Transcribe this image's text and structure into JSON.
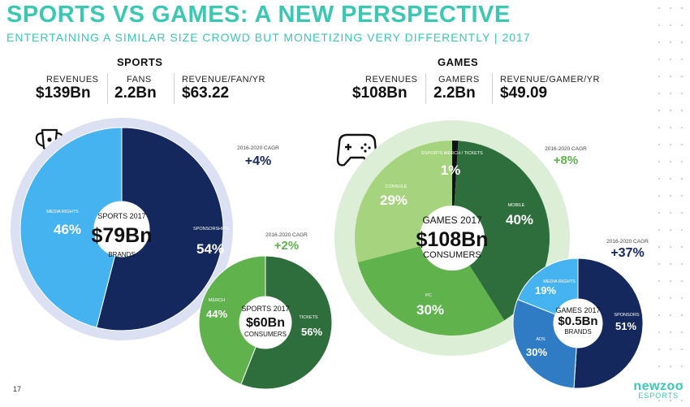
{
  "title": "SPORTS VS GAMES: A NEW PERSPECTIVE",
  "subtitle": "ENTERTAINING A SIMILAR SIZE CROWD BUT MONETIZING VERY DIFFERENTLY | 2017",
  "page_number": "17",
  "logo": {
    "name": "newzoo",
    "sub": "ESPORTS"
  },
  "sports": {
    "heading": "SPORTS",
    "stats": [
      {
        "label": "REVENUES",
        "value": "$139Bn"
      },
      {
        "label": "FANS",
        "value": "2.2Bn"
      },
      {
        "label": "REVENUE/FAN/YR",
        "value": "$63.22"
      }
    ]
  },
  "games": {
    "heading": "GAMES",
    "stats": [
      {
        "label": "REVENUES",
        "value": "$108Bn"
      },
      {
        "label": "GAMERS",
        "value": "2.2Bn"
      },
      {
        "label": "REVENUE/GAMER/YR",
        "value": "$49.09"
      }
    ]
  },
  "colors": {
    "navy": "#14285e",
    "lightblue": "#45b3f0",
    "midblue": "#2f7cc4",
    "palelavender": "#dbe1f3",
    "palegreen": "#dcefd6",
    "darkgreen": "#2e6e3c",
    "green": "#5fb24c",
    "lightgreen": "#a6d37e",
    "black": "#111111",
    "teal": "#3cc7b2"
  },
  "chart_data": [
    {
      "type": "pie",
      "center_title": "SPORTS 2017",
      "center_value": "$79Bn",
      "center_sub": "BRANDS",
      "cagr_label": "2016-2020 CAGR",
      "cagr_value": "+4%",
      "slices": [
        {
          "name": "SPONSORSHIPS",
          "value": 54,
          "label": "54%",
          "color": "#14285e"
        },
        {
          "name": "MEDIA RIGHTS",
          "value": 46,
          "label": "46%",
          "color": "#45b3f0"
        }
      ]
    },
    {
      "type": "pie",
      "center_title": "SPORTS 2017",
      "center_value": "$60Bn",
      "center_sub": "CONSUMERS",
      "cagr_label": "2016-2020 CAGR",
      "cagr_value": "+2%",
      "slices": [
        {
          "name": "TICKETS",
          "value": 56,
          "label": "56%",
          "color": "#2e6e3c"
        },
        {
          "name": "MERCH",
          "value": 44,
          "label": "44%",
          "color": "#5fb24c"
        }
      ]
    },
    {
      "type": "pie",
      "center_title": "GAMES 2017",
      "center_value": "$108Bn",
      "center_sub": "CONSUMERS",
      "cagr_label": "2016-2020 CAGR",
      "cagr_value": "+8%",
      "slices": [
        {
          "name": "ESPORTS MERCH / TICKETS",
          "value": 1,
          "label": "1%",
          "color": "#111111"
        },
        {
          "name": "MOBILE",
          "value": 40,
          "label": "40%",
          "color": "#2e6e3c"
        },
        {
          "name": "PC",
          "value": 30,
          "label": "30%",
          "color": "#5fb24c"
        },
        {
          "name": "CONSOLE",
          "value": 29,
          "label": "29%",
          "color": "#a6d37e"
        }
      ]
    },
    {
      "type": "pie",
      "center_title": "GAMES 2017",
      "center_value": "$0.5Bn",
      "center_sub": "BRANDS",
      "cagr_label": "2016-2020 CAGR",
      "cagr_value": "+37%",
      "slices": [
        {
          "name": "SPONSORS",
          "value": 51,
          "label": "51%",
          "color": "#14285e"
        },
        {
          "name": "ADS",
          "value": 30,
          "label": "30%",
          "color": "#2f7cc4"
        },
        {
          "name": "MEDIA RIGHTS",
          "value": 19,
          "label": "19%",
          "color": "#45b3f0"
        }
      ]
    }
  ]
}
